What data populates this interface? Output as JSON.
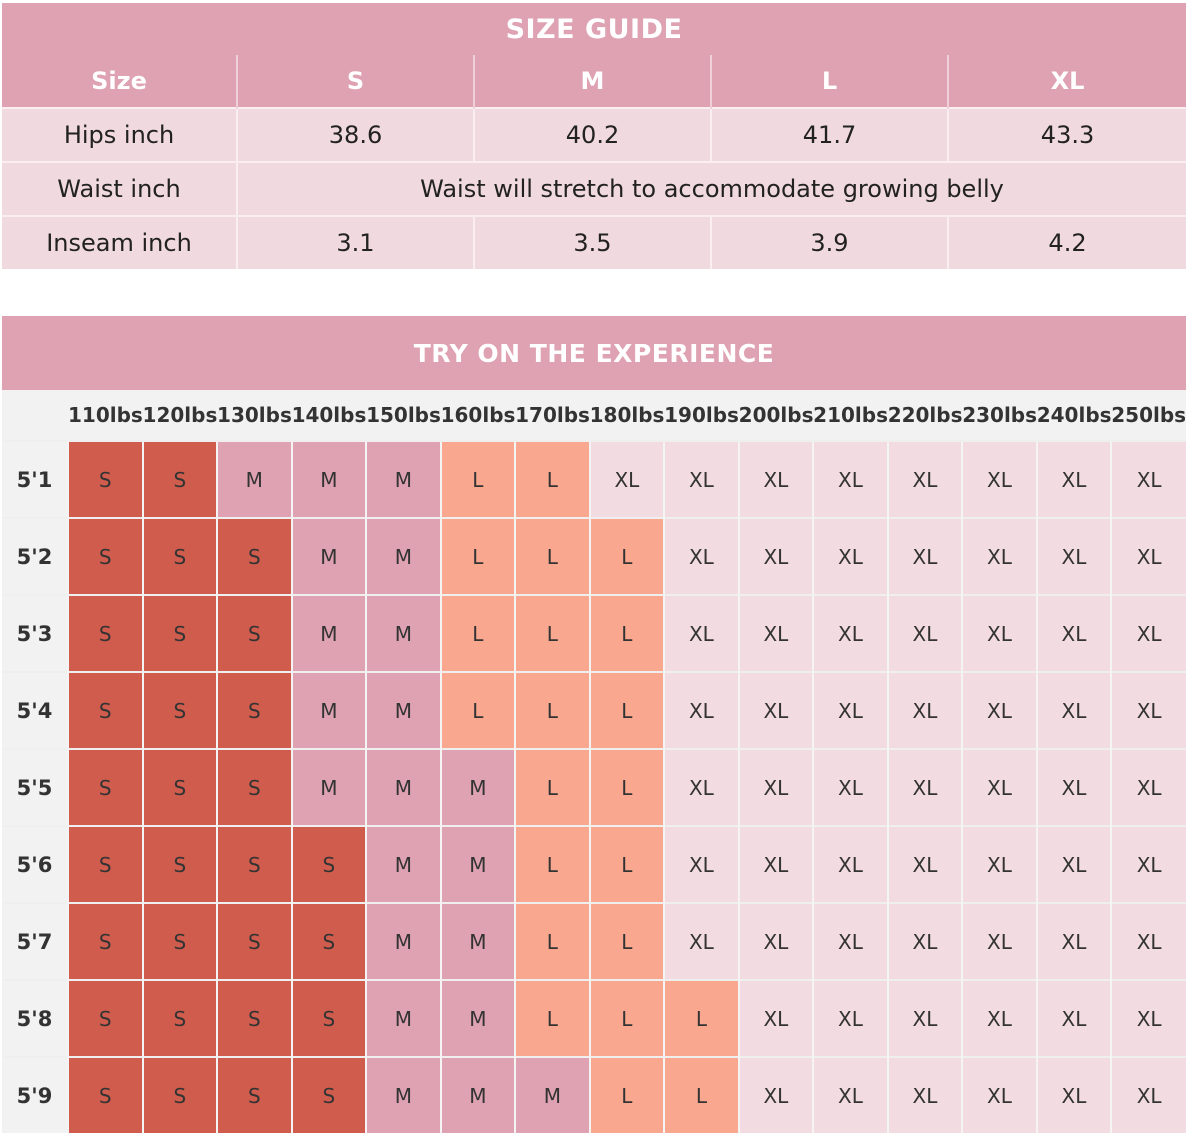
{
  "size_guide": {
    "title": "SIZE GUIDE",
    "header": [
      "Size",
      "S",
      "M",
      "L",
      "XL"
    ],
    "rows": [
      {
        "label": "Hips inch",
        "values": [
          "38.6",
          "40.2",
          "41.7",
          "43.3"
        ]
      },
      {
        "label": "Waist inch",
        "note": "Waist will stretch to accommodate growing belly"
      },
      {
        "label": "Inseam inch",
        "values": [
          "3.1",
          "3.5",
          "3.9",
          "4.2"
        ]
      }
    ]
  },
  "tryon": {
    "title": "TRY ON THE EXPERIENCE",
    "weights": [
      "110lbs",
      "120lbs",
      "130lbs",
      "140lbs",
      "150lbs",
      "160lbs",
      "170lbs",
      "180lbs",
      "190lbs",
      "200lbs",
      "210lbs",
      "220lbs",
      "230lbs",
      "240lbs",
      "250lbs"
    ],
    "rows": [
      {
        "height": "5'1",
        "sizes": [
          "S",
          "S",
          "M",
          "M",
          "M",
          "L",
          "L",
          "XL",
          "XL",
          "XL",
          "XL",
          "XL",
          "XL",
          "XL",
          "XL"
        ]
      },
      {
        "height": "5'2",
        "sizes": [
          "S",
          "S",
          "S",
          "M",
          "M",
          "L",
          "L",
          "L",
          "XL",
          "XL",
          "XL",
          "XL",
          "XL",
          "XL",
          "XL"
        ]
      },
      {
        "height": "5'3",
        "sizes": [
          "S",
          "S",
          "S",
          "M",
          "M",
          "L",
          "L",
          "L",
          "XL",
          "XL",
          "XL",
          "XL",
          "XL",
          "XL",
          "XL"
        ]
      },
      {
        "height": "5'4",
        "sizes": [
          "S",
          "S",
          "S",
          "M",
          "M",
          "L",
          "L",
          "L",
          "XL",
          "XL",
          "XL",
          "XL",
          "XL",
          "XL",
          "XL"
        ]
      },
      {
        "height": "5'5",
        "sizes": [
          "S",
          "S",
          "S",
          "M",
          "M",
          "M",
          "L",
          "L",
          "XL",
          "XL",
          "XL",
          "XL",
          "XL",
          "XL",
          "XL"
        ]
      },
      {
        "height": "5'6",
        "sizes": [
          "S",
          "S",
          "S",
          "S",
          "M",
          "M",
          "L",
          "L",
          "XL",
          "XL",
          "XL",
          "XL",
          "XL",
          "XL",
          "XL"
        ]
      },
      {
        "height": "5'7",
        "sizes": [
          "S",
          "S",
          "S",
          "S",
          "M",
          "M",
          "L",
          "L",
          "XL",
          "XL",
          "XL",
          "XL",
          "XL",
          "XL",
          "XL"
        ]
      },
      {
        "height": "5'8",
        "sizes": [
          "S",
          "S",
          "S",
          "S",
          "M",
          "M",
          "L",
          "L",
          "L",
          "XL",
          "XL",
          "XL",
          "XL",
          "XL",
          "XL"
        ]
      },
      {
        "height": "5'9",
        "sizes": [
          "S",
          "S",
          "S",
          "S",
          "M",
          "M",
          "M",
          "L",
          "L",
          "XL",
          "XL",
          "XL",
          "XL",
          "XL",
          "XL"
        ]
      }
    ]
  },
  "colors": {
    "header_pink": "#dea2b2",
    "size_S": "#cf5c4d",
    "size_M": "#dea2b2",
    "size_L": "#f9a88f",
    "size_XL": "#f2dbe1"
  }
}
